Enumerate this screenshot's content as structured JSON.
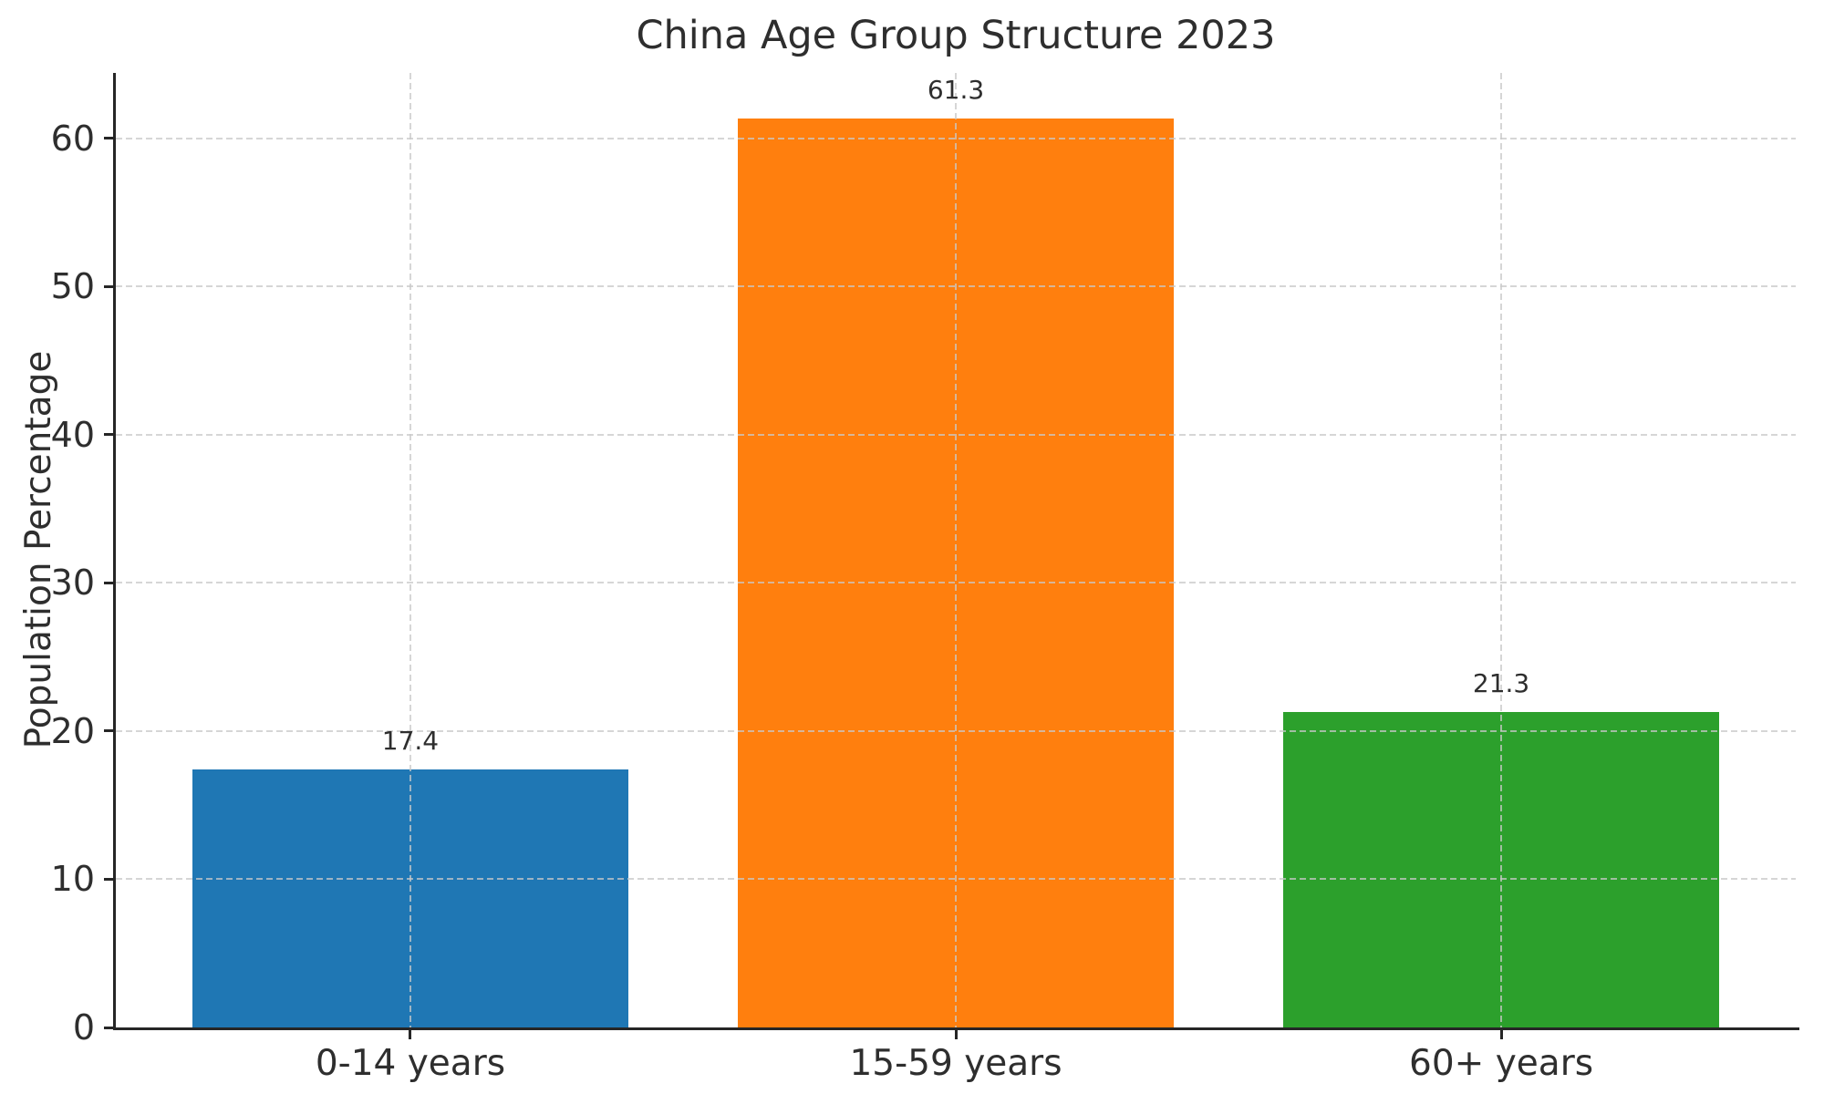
{
  "chart_data": {
    "type": "bar",
    "title": "China Age Group Structure 2023",
    "xlabel": "",
    "ylabel": "Population Percentage",
    "categories": [
      "0-14 years",
      "15-59 years",
      "60+ years"
    ],
    "values": [
      17.4,
      61.3,
      21.3
    ],
    "value_labels": [
      "17.4",
      "61.3",
      "21.3"
    ],
    "bar_colors": [
      "#1f77b4",
      "#ff7f0e",
      "#2ca02c"
    ],
    "yticks": [
      0,
      10,
      20,
      30,
      40,
      50,
      60
    ],
    "ylim": [
      0,
      64.4
    ],
    "bar_width_fraction": 0.8,
    "grid": "dashed, horizontal and vertical, drawn above bars",
    "legend": "none",
    "background_color": "#ffffff",
    "text_color": "#2e2e2e",
    "spine_color": "#262626",
    "grid_color": "#c8c8c8"
  }
}
